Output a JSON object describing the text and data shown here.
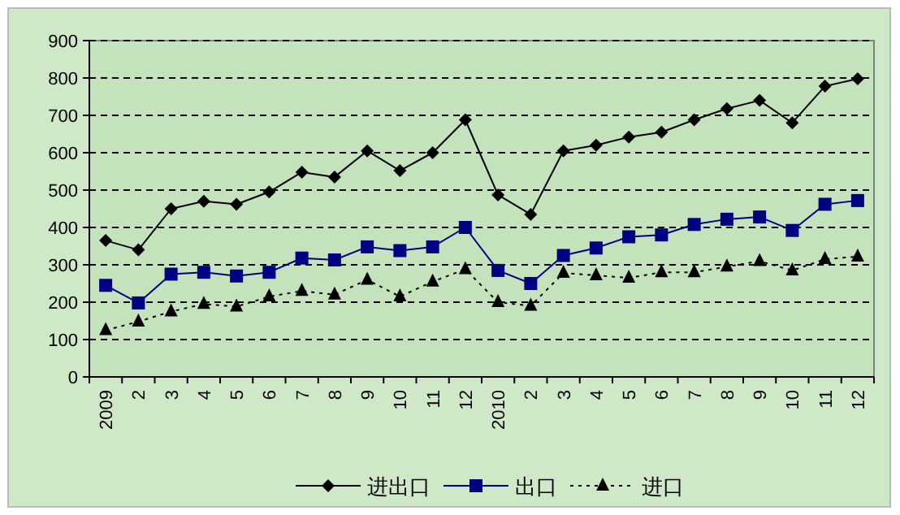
{
  "chart_data": {
    "type": "line",
    "categories": [
      "2009",
      "2",
      "3",
      "4",
      "5",
      "6",
      "7",
      "8",
      "9",
      "10",
      "11",
      "12",
      "2010",
      "2",
      "3",
      "4",
      "5",
      "6",
      "7",
      "8",
      "9",
      "10",
      "11",
      "12"
    ],
    "series": [
      {
        "name": "进出口",
        "color": "#000000",
        "marker": "diamond",
        "line_style": "solid",
        "values": [
          365,
          340,
          450,
          470,
          462,
          495,
          548,
          535,
          605,
          552,
          600,
          688,
          487,
          435,
          605,
          620,
          642,
          655,
          688,
          718,
          740,
          680,
          778,
          798
        ]
      },
      {
        "name": "出口",
        "color": "#000080",
        "marker": "square",
        "line_style": "solid",
        "values": [
          245,
          198,
          275,
          280,
          270,
          280,
          318,
          313,
          348,
          338,
          348,
          400,
          285,
          250,
          325,
          345,
          375,
          380,
          408,
          422,
          428,
          392,
          462,
          472
        ]
      },
      {
        "name": "进口",
        "color": "#000000",
        "marker": "triangle",
        "line_style": "dotted",
        "values": [
          125,
          148,
          175,
          195,
          188,
          215,
          230,
          220,
          260,
          215,
          255,
          288,
          200,
          190,
          278,
          272,
          265,
          280,
          280,
          295,
          310,
          285,
          315,
          322
        ]
      }
    ],
    "ylim": [
      0,
      900
    ],
    "yticks": [
      0,
      100,
      200,
      300,
      400,
      500,
      600,
      700,
      800,
      900
    ],
    "grid": "y",
    "legend": "bottom"
  }
}
